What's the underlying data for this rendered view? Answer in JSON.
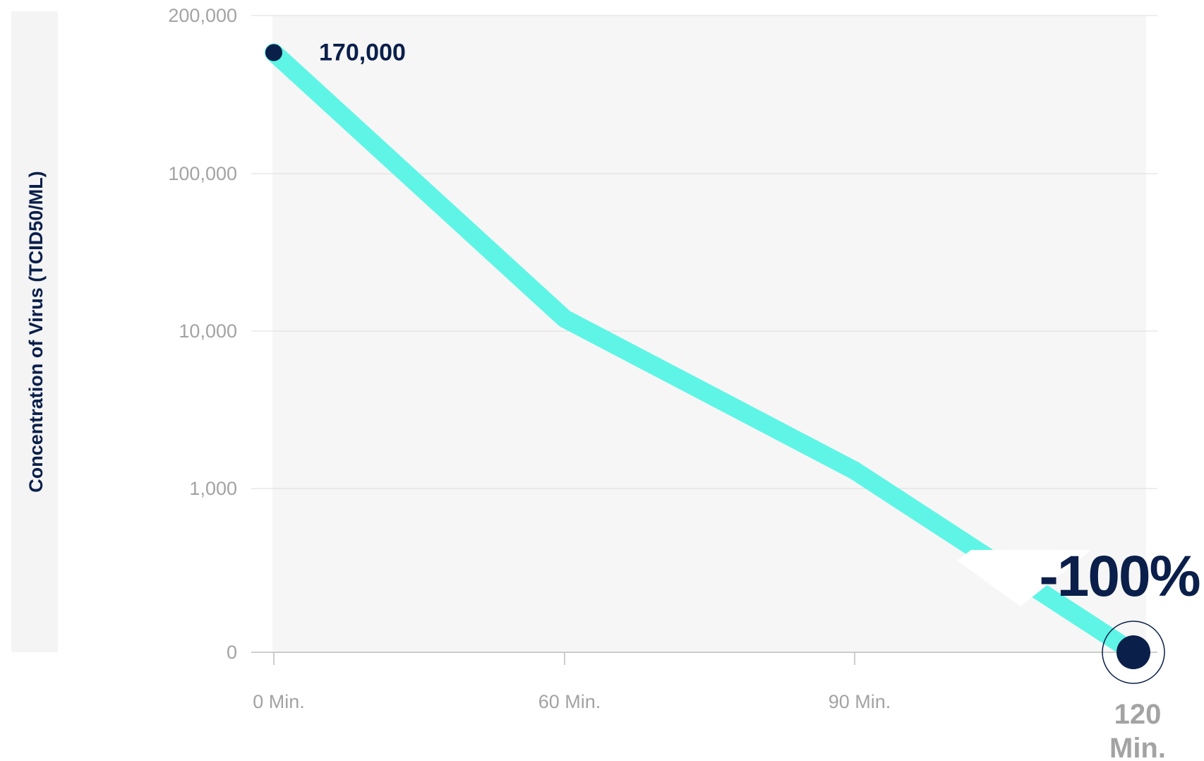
{
  "chart_data": {
    "type": "line",
    "title": "",
    "xlabel": "",
    "ylabel": "Concentration of Virus (TCID50/ML)",
    "yscale": "log",
    "y_tick_labels": [
      "200,000",
      "100,000",
      "10,000",
      "1,000",
      "0"
    ],
    "y_tick_values": [
      200000,
      100000,
      10000,
      1000,
      0
    ],
    "categories": [
      "0 Min.",
      "60 Min.",
      "90 Min.",
      "120 Min."
    ],
    "series": [
      {
        "values": [
          170000,
          12000,
          1300,
          0
        ]
      }
    ],
    "annotations": [
      {
        "text": "170,000",
        "point_index": 0
      },
      {
        "text": "-100%",
        "point_index": 3
      }
    ],
    "grid": true,
    "legend": "none",
    "colors": {
      "line": "#5ef5e6",
      "marker": "#0a1f4a",
      "annotation_text": "#0a1f4a",
      "plot_background": "#f6f6f6",
      "ylabel_panel": "#f4f4f4",
      "gridline": "#dcdcdc",
      "tick_text": "#a3a3a3"
    }
  }
}
